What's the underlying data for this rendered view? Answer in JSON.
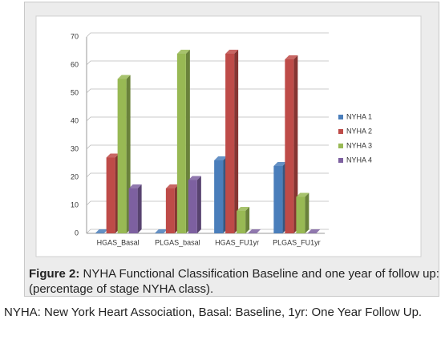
{
  "chart_data": {
    "type": "bar3d",
    "categories": [
      "HGAS_Basal",
      "PLGAS_basal",
      "HGAS_FU1yr",
      "PLGAS_FU1yr"
    ],
    "series": [
      {
        "name": "NYHA 1",
        "color": "#4a7ebb",
        "values": [
          0,
          0,
          26,
          24
        ]
      },
      {
        "name": "NYHA 2",
        "color": "#be4b48",
        "values": [
          27,
          16,
          64,
          62
        ]
      },
      {
        "name": "NYHA 3",
        "color": "#98b954",
        "values": [
          55,
          64,
          8,
          13
        ]
      },
      {
        "name": "NYHA 4",
        "color": "#7d60a0",
        "values": [
          16,
          19,
          0,
          0
        ]
      }
    ],
    "ylim": [
      0,
      70
    ],
    "yticks": [
      0,
      10,
      20,
      30,
      40,
      50,
      60,
      70
    ],
    "grid": true,
    "legend": "right"
  },
  "caption": {
    "label": "Figure 2:",
    "text": "NYHA Functional Classification Baseline and one year of follow up: (percentage of stage NYHA class)."
  },
  "note": "NYHA: New York Heart Association, Basal: Baseline, 1yr: One Year Follow Up."
}
